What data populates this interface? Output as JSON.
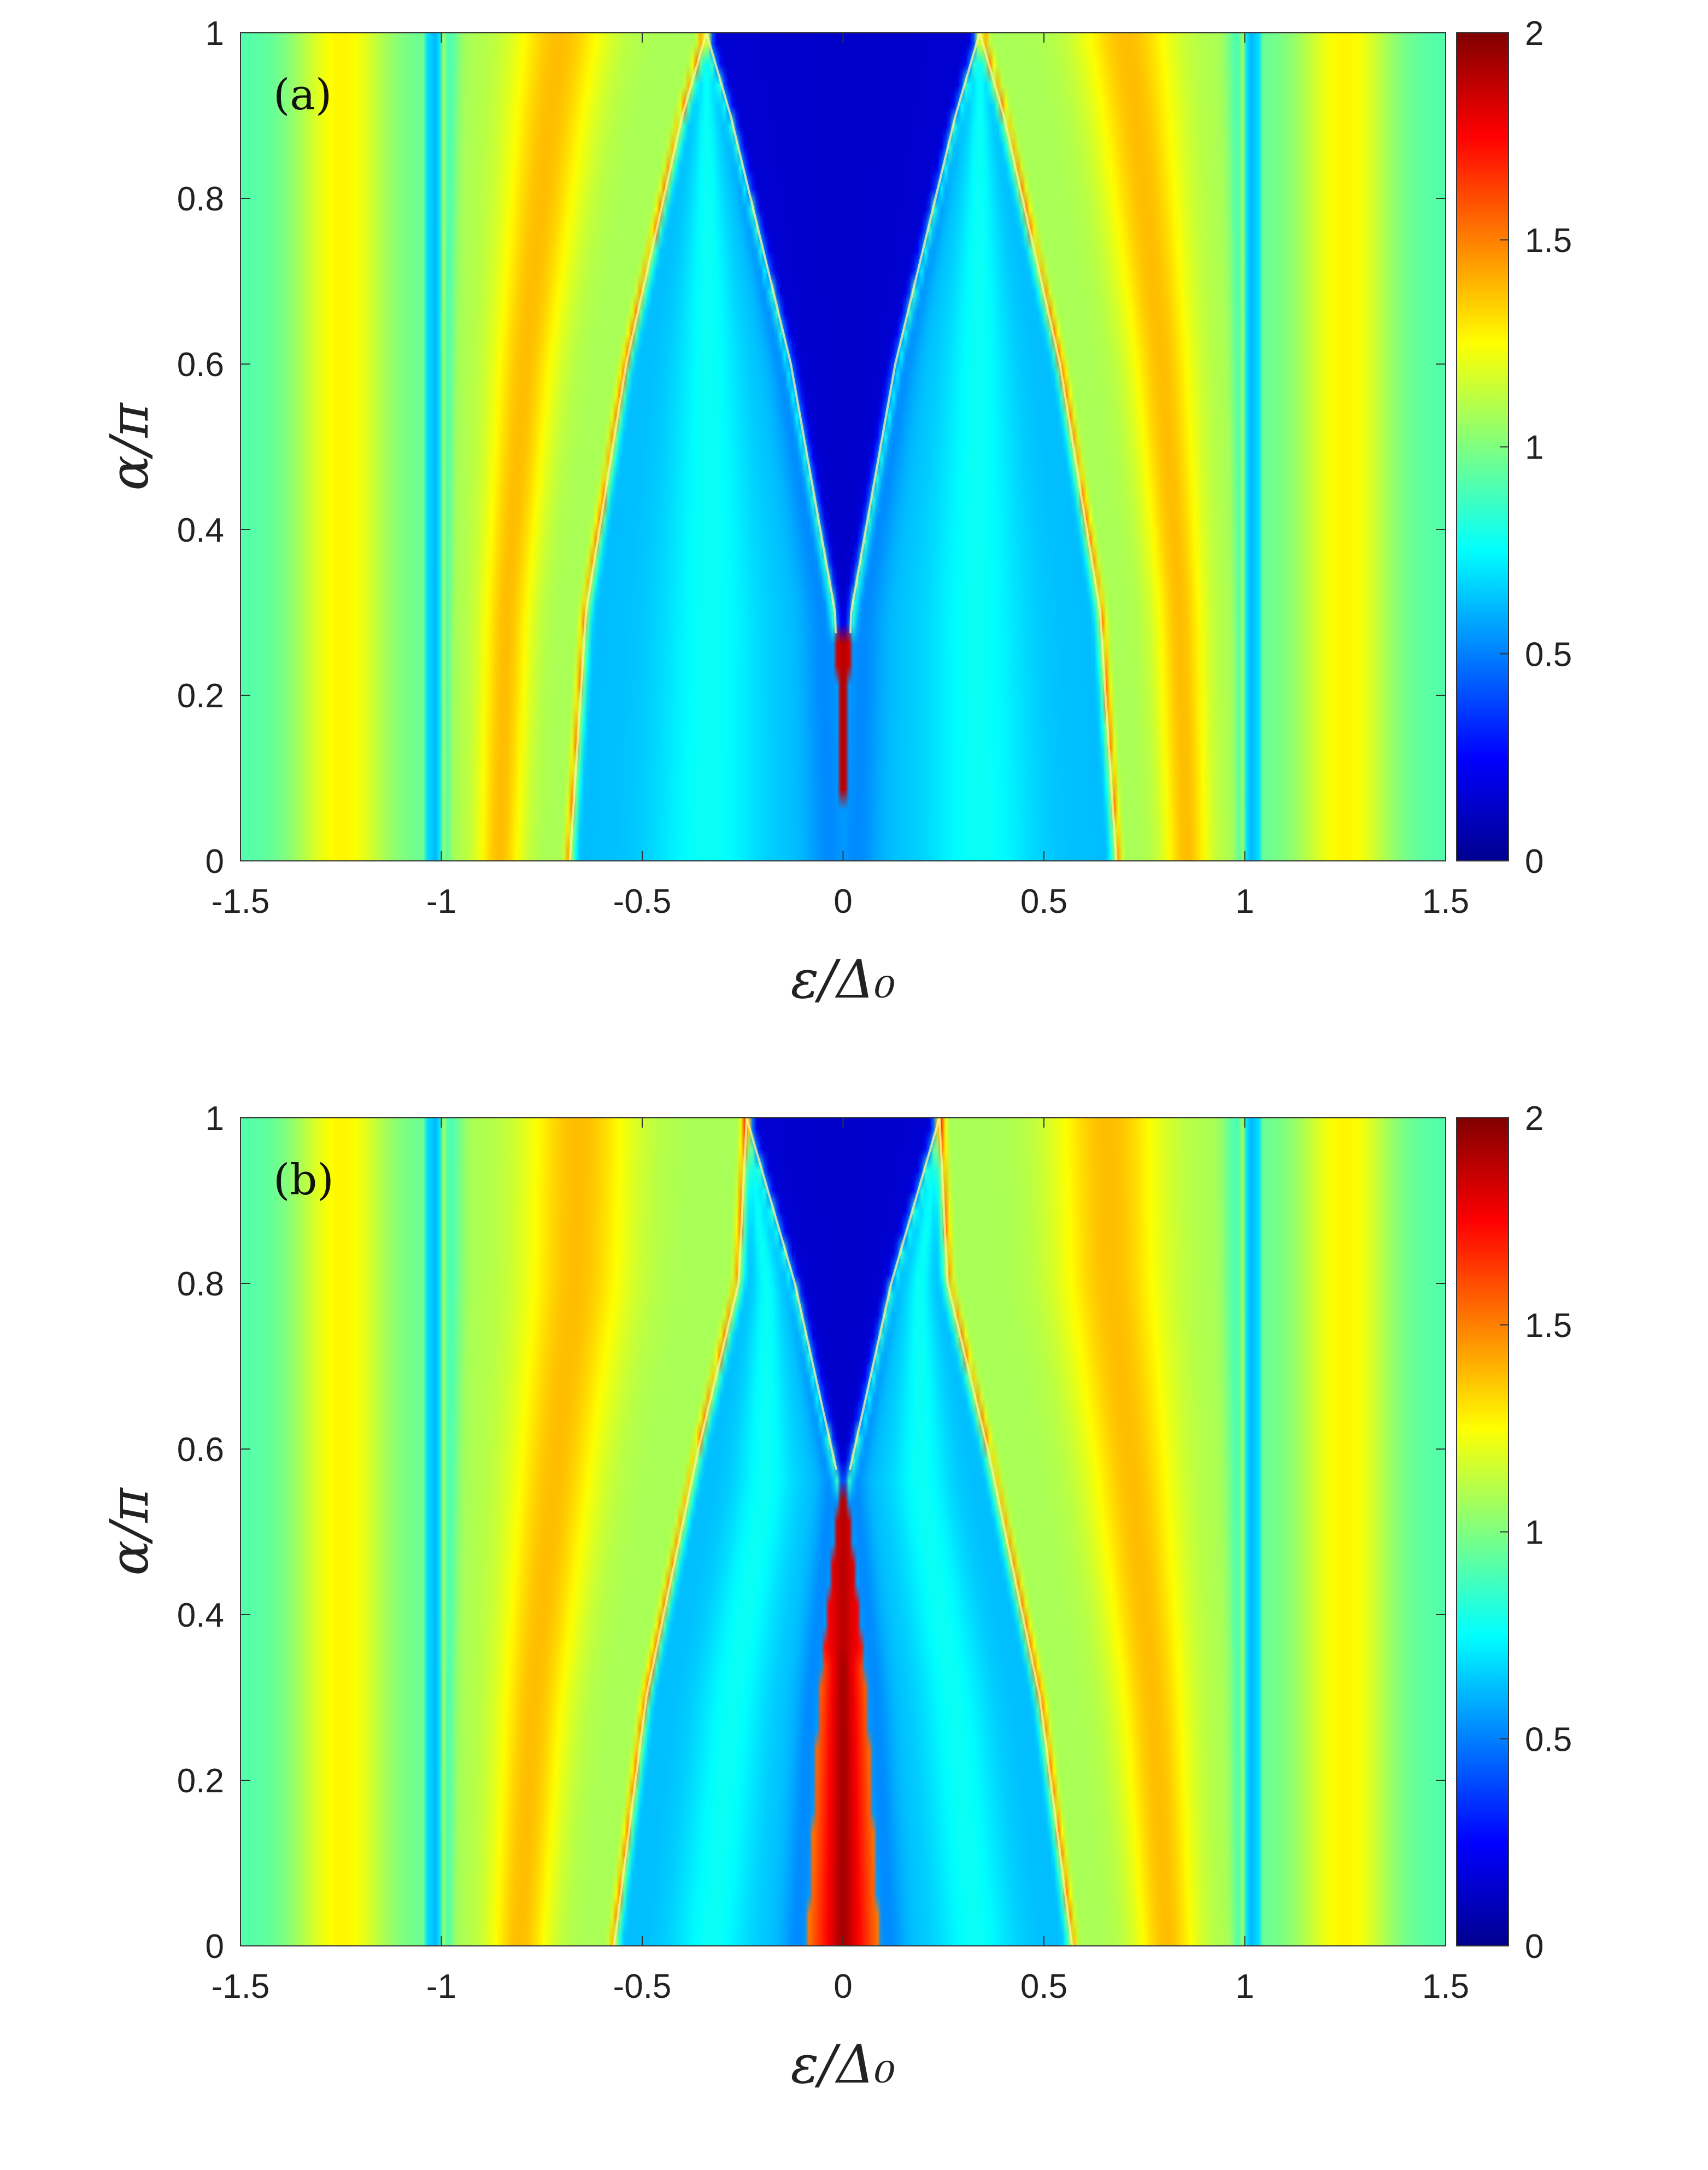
{
  "chart_data": [
    {
      "type": "heatmap",
      "panel_label": "(a)",
      "xlabel": "ε/Δ₀",
      "ylabel": "α/π",
      "xlim": [
        -1.5,
        1.5
      ],
      "ylim": [
        0,
        1
      ],
      "x_ticks": [
        "-1.5",
        "-1",
        "-0.5",
        "0",
        "0.5",
        "1",
        "1.5"
      ],
      "y_ticks": [
        "0",
        "0.2",
        "0.4",
        "0.6",
        "0.8",
        "1"
      ],
      "colorbar": {
        "range": [
          0,
          2
        ],
        "ticks": [
          "0",
          "0.5",
          "1",
          "1.5",
          "2"
        ],
        "colormap": "jet"
      },
      "zero_energy_peak_alpha_max": 0.27,
      "peak_branches": [
        {
          "name": "inner",
          "alpha": [
            0.0,
            0.3,
            0.6,
            0.9,
            1.0
          ],
          "epsilon": [
            0.0,
            0.02,
            0.13,
            0.28,
            0.34
          ]
        },
        {
          "name": "outer",
          "alpha": [
            0.0,
            0.3,
            0.6,
            0.9,
            1.0
          ],
          "epsilon": [
            0.68,
            0.64,
            0.54,
            0.4,
            0.34
          ]
        }
      ],
      "gap_edge_epsilon": 1.0
    },
    {
      "type": "heatmap",
      "panel_label": "(b)",
      "xlabel": "ε/Δ₀",
      "ylabel": "α/π",
      "xlim": [
        -1.5,
        1.5
      ],
      "ylim": [
        0,
        1
      ],
      "x_ticks": [
        "-1.5",
        "-1",
        "-0.5",
        "0",
        "0.5",
        "1",
        "1.5"
      ],
      "y_ticks": [
        "0",
        "0.2",
        "0.4",
        "0.6",
        "0.8",
        "1"
      ],
      "colorbar": {
        "range": [
          0,
          2
        ],
        "ticks": [
          "0",
          "0.5",
          "1",
          "1.5",
          "2"
        ],
        "colormap": "jet"
      },
      "zero_energy_peak_alpha_max": 0.56,
      "peak_branches": [
        {
          "name": "inner",
          "alpha": [
            0.0,
            0.3,
            0.56,
            0.8,
            1.0
          ],
          "epsilon": [
            0.09,
            0.06,
            0.01,
            0.12,
            0.24
          ]
        },
        {
          "name": "outer",
          "alpha": [
            0.0,
            0.3,
            0.6,
            0.8,
            1.0
          ],
          "epsilon": [
            0.57,
            0.49,
            0.36,
            0.26,
            0.24
          ]
        }
      ],
      "gap_edge_epsilon": 1.0
    }
  ]
}
